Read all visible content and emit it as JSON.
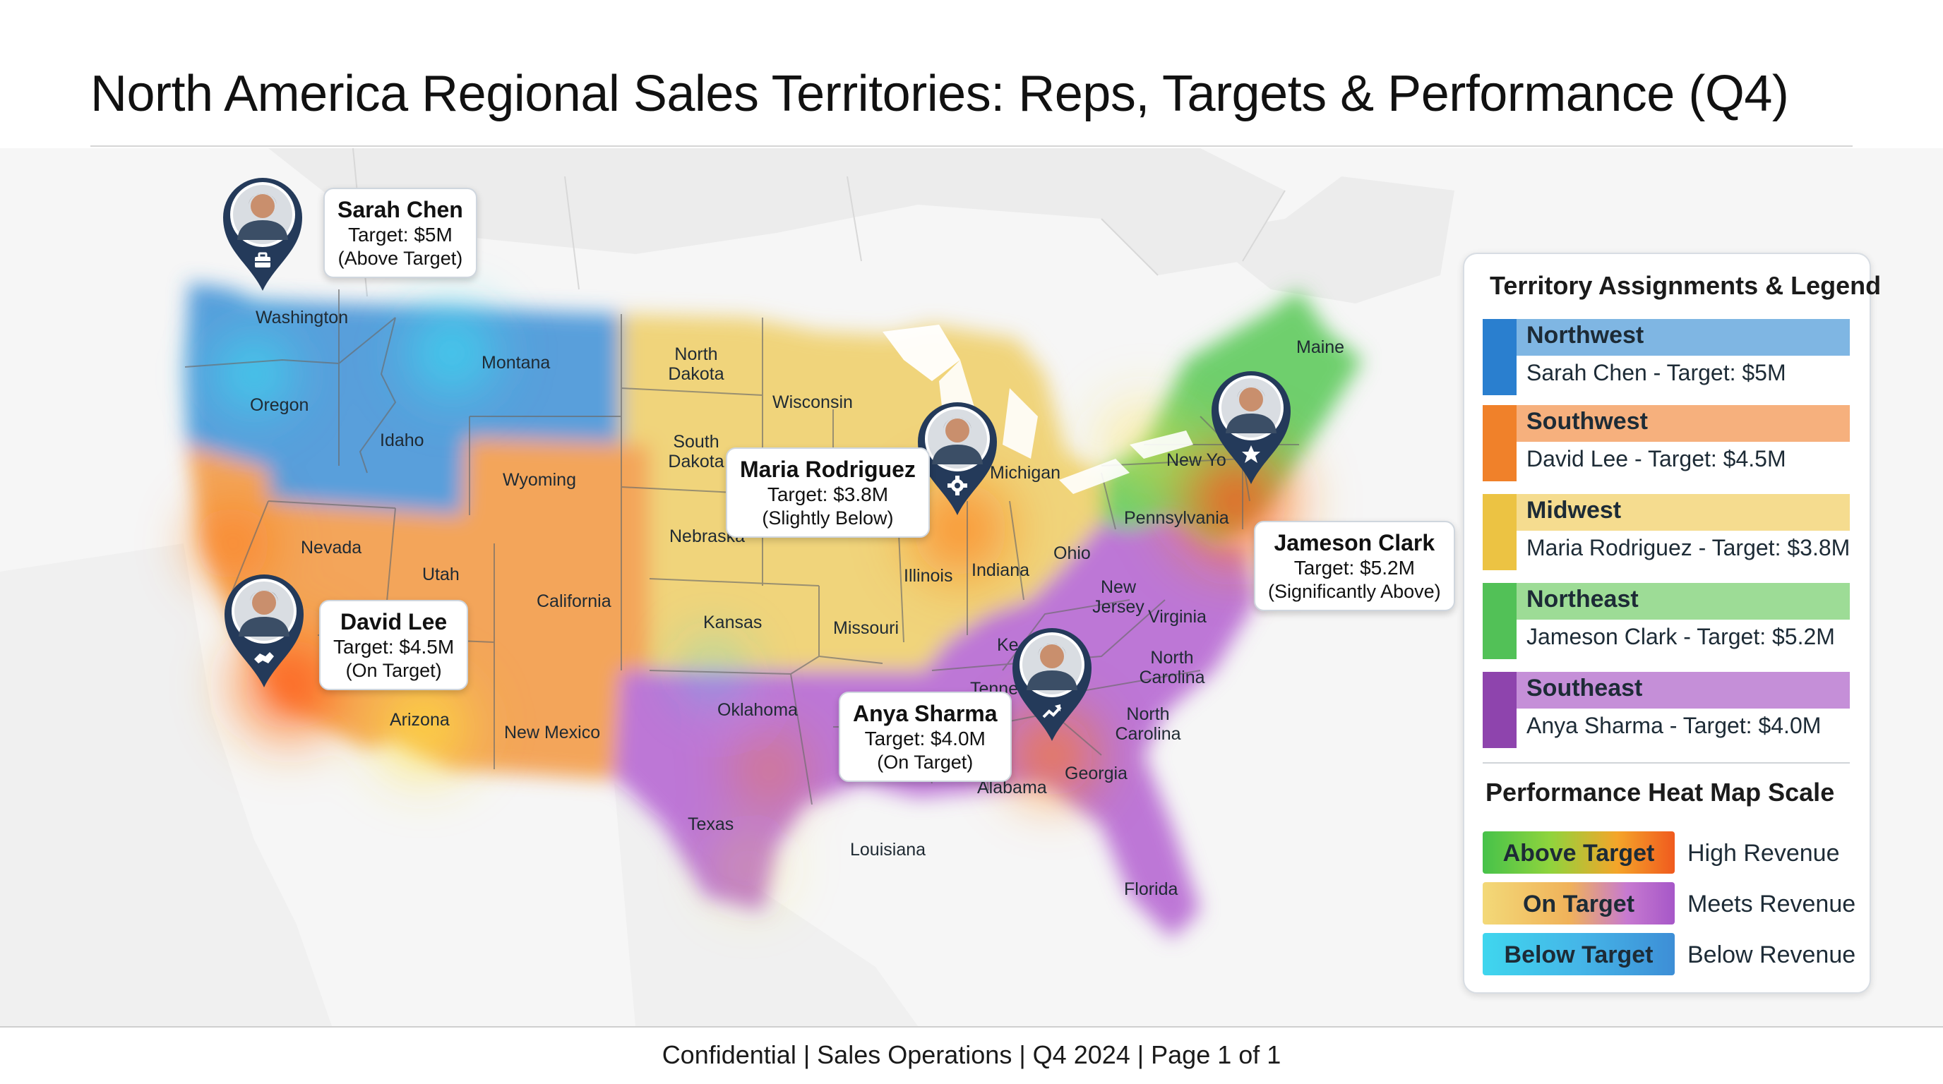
{
  "title": "North America Regional Sales Territories: Reps, Targets & Performance (Q4)",
  "states": {
    "washington": "Washington",
    "oregon": "Oregon",
    "idaho": "Idaho",
    "montana": "Montana",
    "wyoming": "Wyoming",
    "nevada": "Nevada",
    "utah": "Utah",
    "california": "California",
    "arizona": "Arizona",
    "new_mexico": "New Mexico",
    "north_dakota": "North\nDakota",
    "south_dakota": "South\nDakota",
    "nebraska": "Nebraska",
    "kansas": "Kansas",
    "oklahoma": "Oklahoma",
    "texas": "Texas",
    "wisconsin": "Wisconsin",
    "michigan": "Michigan",
    "illinois": "Illinois",
    "indiana": "Indiana",
    "ohio": "Ohio",
    "missouri": "Missouri",
    "louisiana": "Louisiana",
    "alabama": "Alabama",
    "georgia": "Georgia",
    "florida": "Florida",
    "tennessee": "Tenne",
    "kentucky": "Ke",
    "virginia": "Virginia",
    "north_carolina_1": "North\nCarolina",
    "north_carolina_2": "North\nCarolina",
    "new_jersey": "New\nJersey",
    "pennsylvania": "Pennsylvania",
    "new_york": "New Yo",
    "maine": "Maine"
  },
  "reps": [
    {
      "name": "Sarah Chen",
      "target": "Target: $5M",
      "status": "(Above Target)",
      "badge_icon": "briefcase-icon"
    },
    {
      "name": "David Lee",
      "target": "Target: $4.5M",
      "status": "(On Target)",
      "badge_icon": "handshake-icon"
    },
    {
      "name": "Maria Rodriguez",
      "target": "Target: $3.8M",
      "status": "(Slightly Below)",
      "badge_icon": "gear-icon"
    },
    {
      "name": "Jameson Clark",
      "target": "Target: $5.2M",
      "status": "(Significantly Above)",
      "badge_icon": "star-icon"
    },
    {
      "name": "Anya Sharma",
      "target": "Target: $4.0M",
      "status": "(On Target)",
      "badge_icon": "trend-up-icon"
    }
  ],
  "legend": {
    "title": "Territory Assignments & Legend",
    "regions": [
      {
        "name": "Northwest",
        "rep": "Sarah Chen - Target: $5M",
        "color": "#2a7fcf",
        "light": "#7fb6e3"
      },
      {
        "name": "Southwest",
        "rep": "David Lee - Target: $4.5M",
        "color": "#f0812a",
        "light": "#f6b07d"
      },
      {
        "name": "Midwest",
        "rep": "Maria Rodriguez - Target: $3.8M",
        "color": "#ecc343",
        "light": "#f5dc8f"
      },
      {
        "name": "Northeast",
        "rep": "Jameson Clark - Target: $5.2M",
        "color": "#52c157",
        "light": "#9ddc96"
      },
      {
        "name": "Southeast",
        "rep": "Anya Sharma - Target: $4.0M",
        "color": "#8e44ad",
        "light": "#c58fd8"
      }
    ],
    "scale_title": "Performance Heat Map Scale",
    "scale": [
      {
        "label": "Above Target",
        "desc": "High Revenue"
      },
      {
        "label": "On Target",
        "desc": "Meets Revenue"
      },
      {
        "label": "Below Target",
        "desc": "Below Revenue"
      }
    ]
  },
  "footer": "Confidential | Sales Operations | Q4 2024 | Page 1 of 1"
}
